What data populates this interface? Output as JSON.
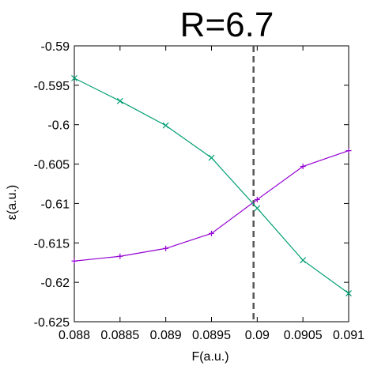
{
  "chart_data": {
    "type": "line",
    "title": "R=6.7",
    "xlabel": "F(a.u.)",
    "ylabel": "ε(a.u.)",
    "xlim": [
      0.088,
      0.091
    ],
    "ylim": [
      -0.625,
      -0.59
    ],
    "x_ticks": [
      0.088,
      0.0885,
      0.089,
      0.0895,
      0.09,
      0.0905,
      0.091
    ],
    "x_tick_labels": [
      "0.088",
      "0.0885",
      "0.089",
      "0.0895",
      "0.09",
      "0.0905",
      "0.091"
    ],
    "y_ticks": [
      -0.59,
      -0.595,
      -0.6,
      -0.605,
      -0.61,
      -0.615,
      -0.62,
      -0.625
    ],
    "y_tick_labels": [
      "-0.59",
      "-0.595",
      "-0.6",
      "-0.605",
      "-0.61",
      "-0.615",
      "-0.62",
      "-0.625"
    ],
    "grid": false,
    "vertical_line": {
      "x": 0.08996,
      "style": "dashed",
      "color": "#555555"
    },
    "series": [
      {
        "color": "#9400d3",
        "marker": "plus",
        "x": [
          0.088,
          0.0885,
          0.089,
          0.0895,
          0.09,
          0.0905,
          0.091
        ],
        "y": [
          -0.6173,
          -0.6167,
          -0.6157,
          -0.6138,
          -0.6095,
          -0.6053,
          -0.6033
        ]
      },
      {
        "color": "#009e73",
        "marker": "cross",
        "x": [
          0.088,
          0.0885,
          0.089,
          0.0895,
          0.09,
          0.0905,
          0.091
        ],
        "y": [
          -0.5941,
          -0.597,
          -0.6001,
          -0.6042,
          -0.6106,
          -0.6172,
          -0.6214
        ]
      }
    ]
  }
}
